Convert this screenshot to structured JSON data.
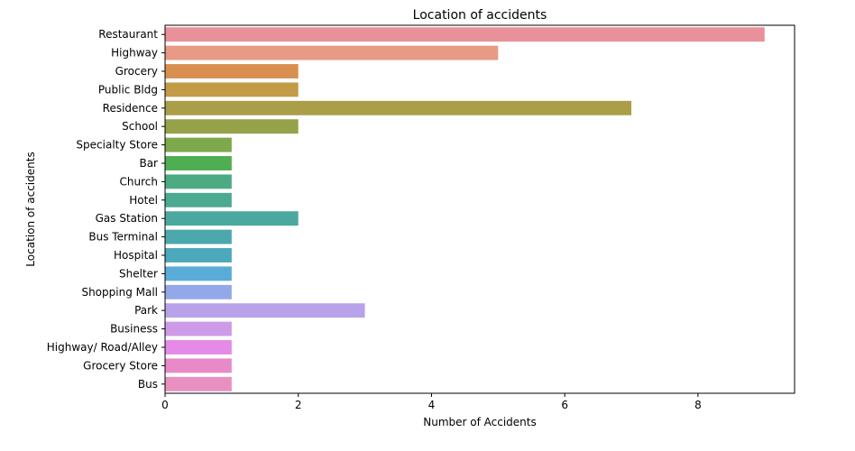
{
  "chart_data": {
    "type": "bar",
    "orientation": "horizontal",
    "title": "Location of accidents",
    "xlabel": "Number of Accidents",
    "ylabel": "Location of accidents",
    "xlim": [
      0,
      9.45
    ],
    "xticks": [
      0,
      2,
      4,
      6,
      8
    ],
    "grid": false,
    "legend": "none",
    "categories": [
      "Restaurant",
      "Highway",
      "Grocery",
      "Public Bldg",
      "Residence",
      "School",
      "Specialty Store",
      "Bar",
      "Church",
      "Hotel",
      "Gas Station",
      "Bus Terminal",
      "Hospital",
      "Shelter",
      "Shopping Mall",
      "Park",
      "Business",
      "Highway/ Road/Alley",
      "Grocery Store",
      "Bus"
    ],
    "values": [
      9,
      5,
      2,
      2,
      7,
      2,
      1,
      1,
      1,
      1,
      2,
      1,
      1,
      1,
      1,
      3,
      1,
      1,
      1,
      1
    ],
    "colors": [
      "#e8919a",
      "#e89a84",
      "#d88f50",
      "#c39a45",
      "#aa9e48",
      "#96a24a",
      "#7da84b",
      "#4fae52",
      "#4dab84",
      "#4caa93",
      "#4ba89f",
      "#4ca8ad",
      "#4ca8bb",
      "#5aacd8",
      "#93a8e8",
      "#b8a3ea",
      "#cd9be8",
      "#e58ae6",
      "#e88ac8",
      "#e890c0"
    ]
  }
}
